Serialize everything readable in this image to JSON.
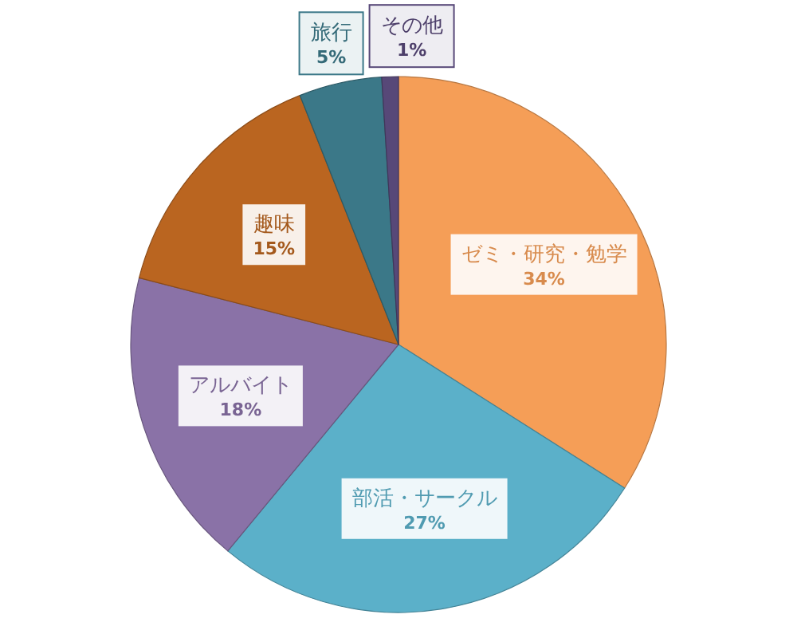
{
  "chart_data": {
    "type": "pie",
    "categories": [
      "ゼミ・研究・勉学",
      "部活・サークル",
      "アルバイト",
      "趣味",
      "旅行",
      "その他"
    ],
    "values": [
      34,
      27,
      18,
      15,
      5,
      1
    ],
    "colors": [
      "#f59e57",
      "#5bb0c9",
      "#8a72a7",
      "#ba6520",
      "#3b7888",
      "#574878"
    ],
    "value_labels": [
      "34%",
      "27%",
      "18%",
      "15%",
      "5%",
      "1%"
    ]
  }
}
